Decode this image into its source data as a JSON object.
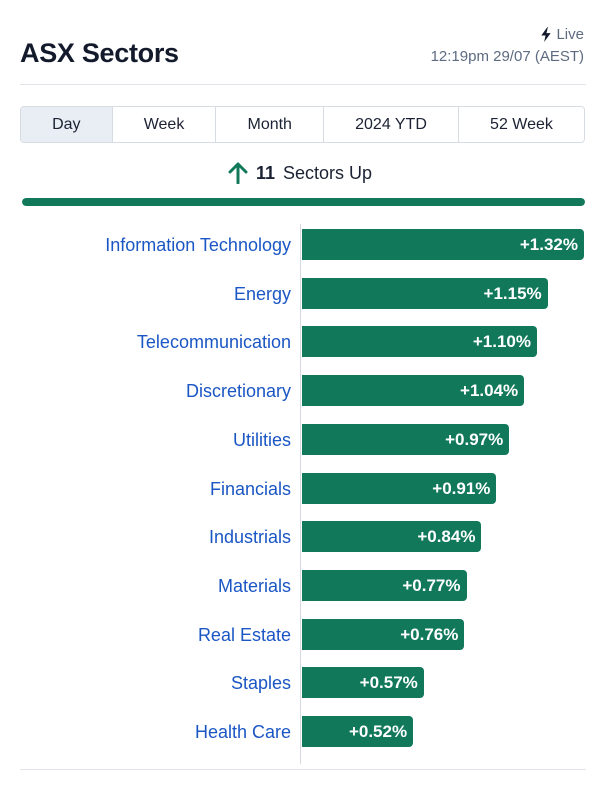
{
  "header": {
    "title": "ASX Sectors",
    "live_label": "Live",
    "timestamp": "12:19pm 29/07 (AEST)",
    "live_icon": "bolt-icon"
  },
  "tabs": [
    {
      "label": "Day",
      "active": true
    },
    {
      "label": "Week",
      "active": false
    },
    {
      "label": "Month",
      "active": false
    },
    {
      "label": "2024 YTD",
      "active": false
    },
    {
      "label": "52 Week",
      "active": false
    }
  ],
  "summary": {
    "icon": "arrow-up-icon",
    "count": "11",
    "text": "Sectors Up",
    "up_fraction": 1.0
  },
  "colors": {
    "positive": "#11795a",
    "label": "#1a56c4"
  },
  "chart_data": {
    "type": "bar",
    "orientation": "horizontal",
    "categories": [
      "Information Technology",
      "Energy",
      "Telecommunication",
      "Discretionary",
      "Utilities",
      "Financials",
      "Industrials",
      "Materials",
      "Real Estate",
      "Staples",
      "Health Care"
    ],
    "values": [
      1.32,
      1.15,
      1.1,
      1.04,
      0.97,
      0.91,
      0.84,
      0.77,
      0.76,
      0.57,
      0.52
    ],
    "labels": [
      "+1.32%",
      "+1.15%",
      "+1.10%",
      "+1.04%",
      "+0.97%",
      "+0.91%",
      "+0.84%",
      "+0.77%",
      "+0.76%",
      "+0.57%",
      "+0.52%"
    ],
    "unit": "%",
    "xlim": [
      0,
      1.32
    ],
    "grid": false
  }
}
